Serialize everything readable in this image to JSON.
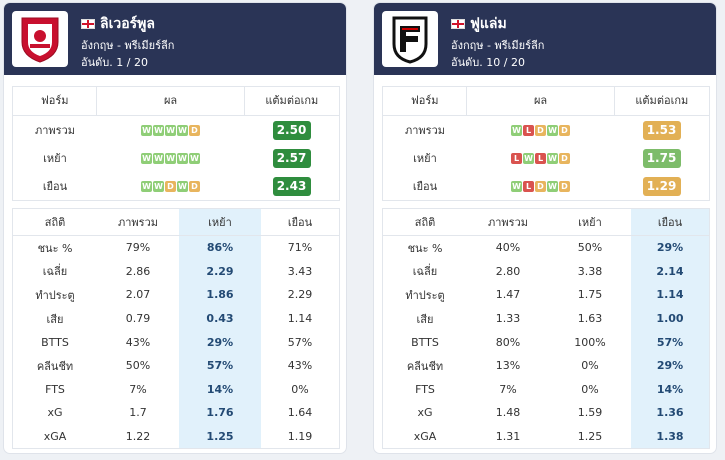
{
  "left": {
    "team_name": "ลิเวอร์พูล",
    "league": "อังกฤษ - พรีเมียร์ลีก",
    "rank": "อันดับ. 1 / 20",
    "form_headers": [
      "ฟอร์ม",
      "ผล",
      "แต้มต่อเกม"
    ],
    "form_rows": [
      {
        "label": "ภาพรวม",
        "results": [
          "W",
          "W",
          "W",
          "W",
          "D"
        ],
        "ppg": "2.50"
      },
      {
        "label": "เหย้า",
        "results": [
          "W",
          "W",
          "W",
          "W",
          "W"
        ],
        "ppg": "2.57"
      },
      {
        "label": "เยือน",
        "results": [
          "W",
          "W",
          "D",
          "W",
          "D"
        ],
        "ppg": "2.43"
      }
    ],
    "stat_headers": [
      "สถิติ",
      "ภาพรวม",
      "เหย้า",
      "เยือน"
    ],
    "stats": [
      {
        "label": "ชนะ %",
        "overall": "79%",
        "home": "86%",
        "away": "71%"
      },
      {
        "label": "เฉลี่ย",
        "overall": "2.86",
        "home": "2.29",
        "away": "3.43"
      },
      {
        "label": "ทำประตู",
        "overall": "2.07",
        "home": "1.86",
        "away": "2.29"
      },
      {
        "label": "เสีย",
        "overall": "0.79",
        "home": "0.43",
        "away": "1.14"
      },
      {
        "label": "BTTS",
        "overall": "43%",
        "home": "29%",
        "away": "57%"
      },
      {
        "label": "คลีนชีท",
        "overall": "50%",
        "home": "57%",
        "away": "43%"
      },
      {
        "label": "FTS",
        "overall": "7%",
        "home": "14%",
        "away": "0%"
      },
      {
        "label": "xG",
        "overall": "1.7",
        "home": "1.76",
        "away": "1.64"
      },
      {
        "label": "xGA",
        "overall": "1.22",
        "home": "1.25",
        "away": "1.19"
      }
    ]
  },
  "right": {
    "team_name": "ฟูแล่ม",
    "league": "อังกฤษ - พรีเมียร์ลีก",
    "rank": "อันดับ. 10 / 20",
    "form_headers": [
      "ฟอร์ม",
      "ผล",
      "แต้มต่อเกม"
    ],
    "form_rows": [
      {
        "label": "ภาพรวม",
        "results": [
          "W",
          "L",
          "D",
          "W",
          "D"
        ],
        "ppg": "1.53"
      },
      {
        "label": "เหย้า",
        "results": [
          "L",
          "W",
          "L",
          "W",
          "D"
        ],
        "ppg": "1.75"
      },
      {
        "label": "เยือน",
        "results": [
          "W",
          "L",
          "D",
          "W",
          "D"
        ],
        "ppg": "1.29"
      }
    ],
    "stat_headers": [
      "สถิติ",
      "ภาพรวม",
      "เหย้า",
      "เยือน"
    ],
    "stats": [
      {
        "label": "ชนะ %",
        "overall": "40%",
        "home": "50%",
        "away": "29%"
      },
      {
        "label": "เฉลี่ย",
        "overall": "2.80",
        "home": "3.38",
        "away": "2.14"
      },
      {
        "label": "ทำประตู",
        "overall": "1.47",
        "home": "1.75",
        "away": "1.14"
      },
      {
        "label": "เสีย",
        "overall": "1.33",
        "home": "1.63",
        "away": "1.00"
      },
      {
        "label": "BTTS",
        "overall": "80%",
        "home": "100%",
        "away": "57%"
      },
      {
        "label": "คลีนชีท",
        "overall": "13%",
        "home": "0%",
        "away": "29%"
      },
      {
        "label": "FTS",
        "overall": "7%",
        "home": "0%",
        "away": "14%"
      },
      {
        "label": "xG",
        "overall": "1.48",
        "home": "1.59",
        "away": "1.36"
      },
      {
        "label": "xGA",
        "overall": "1.31",
        "home": "1.25",
        "away": "1.38"
      }
    ]
  },
  "colors": {
    "header_bg": "#2a3456",
    "win": "#8fce77",
    "draw": "#e8b55e",
    "loss": "#d9534f",
    "highlight": "#e1f1fb"
  },
  "icons": {
    "left_logo": "liverpool-crest-icon",
    "right_logo": "fulham-crest-icon",
    "flag": "england-flag-icon"
  }
}
